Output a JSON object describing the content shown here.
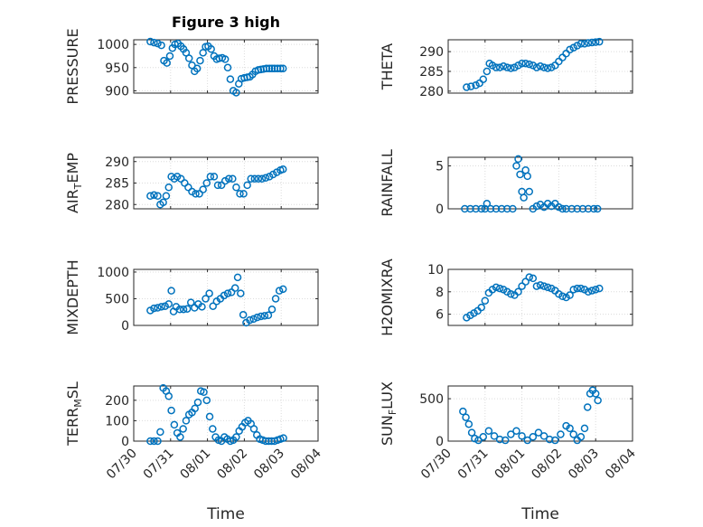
{
  "colors": {
    "marker": "#0072bd",
    "axis": "#262626",
    "grid": "#dcdcdc"
  },
  "x_tick_labels": [
    "07/30",
    "07/31",
    "08/01",
    "08/02",
    "08/03",
    "08/04"
  ],
  "xlabel": "Time",
  "chart_data": [
    {
      "type": "scatter",
      "title": "Figure 3 high",
      "ylabel": "PRESSURE",
      "xlim": [
        0,
        5
      ],
      "ylim": [
        895,
        1010
      ],
      "yticks": [
        900,
        950,
        1000
      ],
      "grid": "on",
      "x": [
        0.45,
        0.55,
        0.65,
        0.75,
        0.82,
        0.9,
        0.98,
        1.05,
        1.12,
        1.2,
        1.28,
        1.35,
        1.42,
        1.5,
        1.58,
        1.65,
        1.72,
        1.8,
        1.88,
        1.95,
        2.02,
        2.1,
        2.18,
        2.25,
        2.32,
        2.4,
        2.48,
        2.55,
        2.62,
        2.7,
        2.78,
        2.85,
        2.92,
        3.0,
        3.08,
        3.15,
        3.22,
        3.3,
        3.38,
        3.45,
        3.52,
        3.6,
        3.68,
        3.75,
        3.82,
        3.9,
        3.98,
        4.05
      ],
      "y": [
        1006,
        1004,
        1002,
        998,
        965,
        960,
        975,
        992,
        1000,
        1002,
        996,
        990,
        982,
        970,
        955,
        942,
        948,
        965,
        982,
        995,
        996,
        990,
        975,
        968,
        970,
        971,
        968,
        950,
        925,
        900,
        896,
        915,
        926,
        928,
        929,
        930,
        935,
        942,
        945,
        946,
        947,
        948,
        948,
        948,
        948,
        948,
        948,
        948
      ]
    },
    {
      "type": "scatter",
      "ylabel": "THETA",
      "xlim": [
        0,
        5
      ],
      "ylim": [
        279.5,
        293
      ],
      "yticks": [
        280,
        285,
        290
      ],
      "grid": "on",
      "x": [
        0.5,
        0.62,
        0.75,
        0.85,
        0.95,
        1.05,
        1.12,
        1.2,
        1.3,
        1.4,
        1.5,
        1.6,
        1.7,
        1.8,
        1.9,
        2.0,
        2.1,
        2.2,
        2.3,
        2.4,
        2.5,
        2.6,
        2.7,
        2.8,
        2.9,
        3.0,
        3.1,
        3.2,
        3.3,
        3.4,
        3.5,
        3.6,
        3.7,
        3.8,
        3.9,
        4.0,
        4.1
      ],
      "y": [
        281,
        281.2,
        281.5,
        282,
        283,
        285,
        287,
        286.5,
        286,
        286,
        286.3,
        286,
        285.8,
        286,
        286.5,
        287,
        287,
        286.8,
        286.5,
        286,
        286.3,
        286,
        285.8,
        286,
        286.5,
        287.5,
        288.5,
        289.5,
        290.5,
        291,
        291.5,
        292,
        292,
        292.2,
        292.3,
        292.4,
        292.5
      ]
    },
    {
      "type": "scatter",
      "ylabel": "AIR_TEMP",
      "xlim": [
        0,
        5
      ],
      "ylim": [
        279,
        291
      ],
      "yticks": [
        280,
        285,
        290
      ],
      "grid": "on",
      "x": [
        0.45,
        0.55,
        0.65,
        0.72,
        0.8,
        0.88,
        0.95,
        1.02,
        1.1,
        1.18,
        1.28,
        1.38,
        1.48,
        1.58,
        1.68,
        1.78,
        1.88,
        1.98,
        2.08,
        2.18,
        2.28,
        2.38,
        2.48,
        2.58,
        2.68,
        2.78,
        2.88,
        2.98,
        3.08,
        3.18,
        3.28,
        3.38,
        3.48,
        3.58,
        3.68,
        3.78,
        3.88,
        3.98,
        4.05
      ],
      "y": [
        282,
        282.2,
        282,
        280,
        280.5,
        282,
        284,
        286.5,
        286,
        286.5,
        286,
        285,
        284,
        283,
        282.5,
        282.5,
        283.5,
        285,
        286.5,
        286.5,
        284.5,
        284.5,
        285.5,
        286,
        286,
        284,
        282.5,
        282.5,
        284.5,
        286,
        286,
        286,
        286,
        286.2,
        286.5,
        287,
        287.5,
        288,
        288.2
      ]
    },
    {
      "type": "scatter",
      "ylabel": "RAINFALL",
      "xlim": [
        0,
        5
      ],
      "ylim": [
        0,
        6
      ],
      "yticks": [
        0,
        5
      ],
      "grid": "on",
      "x": [
        0.45,
        0.6,
        0.75,
        0.9,
        1.0,
        1.05,
        1.15,
        1.3,
        1.45,
        1.6,
        1.75,
        1.85,
        1.9,
        1.95,
        2.0,
        2.05,
        2.1,
        2.15,
        2.2,
        2.3,
        2.4,
        2.5,
        2.6,
        2.7,
        2.8,
        2.9,
        3.0,
        3.1,
        3.2,
        3.35,
        3.5,
        3.65,
        3.8,
        3.95,
        4.05
      ],
      "y": [
        0,
        0,
        0,
        0,
        0,
        0.6,
        0,
        0,
        0,
        0,
        0,
        5,
        5.8,
        4,
        2,
        1.3,
        4.5,
        3.8,
        2,
        0,
        0.3,
        0.5,
        0.2,
        0.6,
        0.3,
        0.6,
        0.2,
        0,
        0,
        0,
        0,
        0,
        0,
        0,
        0
      ]
    },
    {
      "type": "scatter",
      "ylabel": "MIXDEPTH",
      "xlim": [
        0,
        5
      ],
      "ylim": [
        0,
        1050
      ],
      "yticks": [
        0,
        500,
        1000
      ],
      "grid": "on",
      "x": [
        0.45,
        0.55,
        0.65,
        0.75,
        0.85,
        0.95,
        1.02,
        1.08,
        1.15,
        1.25,
        1.35,
        1.45,
        1.55,
        1.65,
        1.75,
        1.85,
        1.95,
        2.05,
        2.15,
        2.25,
        2.35,
        2.45,
        2.55,
        2.65,
        2.75,
        2.82,
        2.9,
        2.97,
        3.05,
        3.15,
        3.25,
        3.35,
        3.45,
        3.55,
        3.65,
        3.75,
        3.85,
        3.95,
        4.05
      ],
      "y": [
        280,
        320,
        330,
        350,
        360,
        400,
        650,
        260,
        350,
        300,
        300,
        310,
        430,
        330,
        400,
        350,
        500,
        600,
        360,
        450,
        500,
        560,
        600,
        620,
        700,
        900,
        600,
        200,
        50,
        100,
        120,
        150,
        170,
        180,
        190,
        300,
        500,
        650,
        680
      ]
    },
    {
      "type": "scatter",
      "ylabel": "H2OMIXRA",
      "xlim": [
        0,
        5
      ],
      "ylim": [
        5,
        10
      ],
      "yticks": [
        6,
        8,
        10
      ],
      "grid": "on",
      "x": [
        0.5,
        0.6,
        0.7,
        0.8,
        0.9,
        1.0,
        1.1,
        1.2,
        1.3,
        1.4,
        1.5,
        1.6,
        1.7,
        1.8,
        1.9,
        2.0,
        2.1,
        2.2,
        2.3,
        2.4,
        2.5,
        2.6,
        2.7,
        2.8,
        2.9,
        3.0,
        3.1,
        3.2,
        3.3,
        3.4,
        3.5,
        3.6,
        3.7,
        3.8,
        3.9,
        4.0,
        4.1
      ],
      "y": [
        5.7,
        5.9,
        6.1,
        6.3,
        6.6,
        7.2,
        7.9,
        8.2,
        8.4,
        8.3,
        8.2,
        8.0,
        7.8,
        7.7,
        8.0,
        8.5,
        8.9,
        9.3,
        9.2,
        8.5,
        8.6,
        8.5,
        8.4,
        8.3,
        8.1,
        7.8,
        7.6,
        7.5,
        7.7,
        8.2,
        8.3,
        8.3,
        8.2,
        8.0,
        8.1,
        8.2,
        8.3
      ]
    },
    {
      "type": "scatter",
      "ylabel": "TERR_MSL",
      "xlim": [
        0,
        5
      ],
      "ylim": [
        0,
        270
      ],
      "yticks": [
        0,
        100,
        200
      ],
      "grid": "on",
      "x": [
        0.45,
        0.55,
        0.65,
        0.72,
        0.8,
        0.88,
        0.95,
        1.02,
        1.1,
        1.18,
        1.26,
        1.34,
        1.42,
        1.5,
        1.58,
        1.66,
        1.74,
        1.82,
        1.9,
        1.98,
        2.06,
        2.14,
        2.22,
        2.3,
        2.38,
        2.46,
        2.54,
        2.62,
        2.7,
        2.78,
        2.86,
        2.94,
        3.02,
        3.1,
        3.18,
        3.26,
        3.34,
        3.42,
        3.5,
        3.58,
        3.66,
        3.74,
        3.82,
        3.9,
        3.98,
        4.06
      ],
      "y": [
        0,
        0,
        0,
        45,
        260,
        245,
        220,
        150,
        80,
        40,
        20,
        60,
        100,
        130,
        140,
        160,
        190,
        245,
        240,
        200,
        120,
        60,
        20,
        5,
        0,
        20,
        10,
        0,
        5,
        20,
        50,
        70,
        90,
        100,
        85,
        60,
        30,
        10,
        5,
        0,
        0,
        0,
        0,
        5,
        10,
        15
      ]
    },
    {
      "type": "scatter",
      "ylabel": "SUN_FLUX",
      "xlim": [
        0,
        5
      ],
      "ylim": [
        0,
        650
      ],
      "yticks": [
        0,
        500
      ],
      "grid": "on",
      "x": [
        0.4,
        0.48,
        0.56,
        0.64,
        0.72,
        0.82,
        0.95,
        1.1,
        1.25,
        1.4,
        1.55,
        1.7,
        1.85,
        2.0,
        2.15,
        2.3,
        2.45,
        2.6,
        2.75,
        2.9,
        3.05,
        3.2,
        3.3,
        3.4,
        3.5,
        3.6,
        3.7,
        3.78,
        3.85,
        3.92,
        4.0,
        4.06
      ],
      "y": [
        350,
        280,
        200,
        100,
        30,
        10,
        50,
        120,
        60,
        20,
        10,
        80,
        120,
        60,
        10,
        50,
        100,
        60,
        20,
        10,
        80,
        180,
        150,
        80,
        10,
        50,
        150,
        400,
        560,
        600,
        560,
        480
      ]
    }
  ]
}
